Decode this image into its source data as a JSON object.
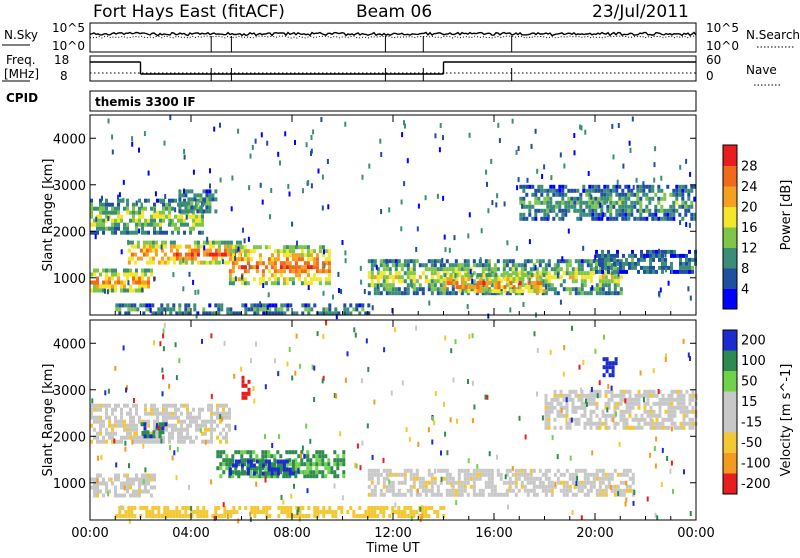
{
  "header": {
    "title": "Fort Hays East (fitACF)",
    "beam": "Beam 06",
    "date": "23/Jul/2011"
  },
  "top_panels": {
    "nsky_label": "N.Sky",
    "nsearch_label": "N.Search",
    "nsky_ticks": [
      "10^5",
      "10^0"
    ],
    "nsearch_ticks": [
      "10^5",
      "10^0"
    ],
    "freq_label_1": "Freq.",
    "freq_label_2": "[MHz]",
    "freq_ticks": [
      "18",
      "8"
    ],
    "nave_label": "Nave",
    "nave_ticks": [
      "60",
      "0"
    ],
    "cpid_label": "CPID",
    "cpid_value": "themis 3300 IF"
  },
  "chart_data": [
    {
      "type": "heatmap",
      "title": "",
      "xlabel": "Time UT",
      "ylabel": "Slant Range [km]",
      "x_ticks": [
        "00:00",
        "04:00",
        "08:00",
        "12:00",
        "16:00",
        "20:00",
        "00:00"
      ],
      "xlim_hours": [
        0,
        24
      ],
      "y_ticks": [
        1000,
        2000,
        3000,
        4000
      ],
      "ylim": [
        200,
        4500
      ],
      "colorbar": {
        "label": "Power [dB]",
        "ticks": [
          4,
          8,
          12,
          16,
          20,
          24,
          28
        ],
        "range": [
          0,
          30
        ],
        "colors": [
          "#0000ff",
          "#1e4fa0",
          "#3b8d78",
          "#7ec54a",
          "#f4e62a",
          "#f5a020",
          "#f06a1a",
          "#e81e1e"
        ]
      },
      "echo_regions": [
        {
          "t_start": 0.0,
          "t_end": 2.5,
          "range_low": 700,
          "range_high": 1200,
          "power": 20
        },
        {
          "t_start": 0.0,
          "t_end": 4.5,
          "range_low": 2000,
          "range_high": 2700,
          "power": 13
        },
        {
          "t_start": 1.5,
          "t_end": 6.0,
          "range_low": 1300,
          "range_high": 1800,
          "power": 22
        },
        {
          "t_start": 3.5,
          "t_end": 5.0,
          "range_low": 2400,
          "range_high": 2900,
          "power": 10
        },
        {
          "t_start": 5.5,
          "t_end": 9.5,
          "range_low": 900,
          "range_high": 1700,
          "power": 22
        },
        {
          "t_start": 1.0,
          "t_end": 11.0,
          "range_low": 250,
          "range_high": 450,
          "power": 10
        },
        {
          "t_start": 11.0,
          "t_end": 21.0,
          "range_low": 700,
          "range_high": 1400,
          "power": 14
        },
        {
          "t_start": 14.0,
          "t_end": 18.0,
          "range_low": 700,
          "range_high": 1100,
          "power": 22
        },
        {
          "t_start": 17.0,
          "t_end": 24.0,
          "range_low": 2300,
          "range_high": 3000,
          "power": 10
        },
        {
          "t_start": 20.0,
          "t_end": 24.0,
          "range_low": 1100,
          "range_high": 1600,
          "power": 8
        }
      ]
    },
    {
      "type": "heatmap",
      "title": "",
      "xlabel": "Time UT",
      "ylabel": "Slant Range [km]",
      "x_ticks": [
        "00:00",
        "04:00",
        "08:00",
        "12:00",
        "16:00",
        "20:00",
        "00:00"
      ],
      "xlim_hours": [
        0,
        24
      ],
      "y_ticks": [
        1000,
        2000,
        3000,
        4000
      ],
      "ylim": [
        200,
        4500
      ],
      "colorbar": {
        "label": "Velocity [m s^-1]",
        "ticks": [
          200,
          100,
          50,
          15,
          -15,
          -50,
          -100,
          -200
        ],
        "colors": [
          "#1a2bd0",
          "#2f8a4f",
          "#6fd24a",
          "#c8c8c8",
          "#c8c8c8",
          "#f4c832",
          "#f59a1e",
          "#e81e1e"
        ]
      },
      "echo_regions": [
        {
          "t_start": 0.0,
          "t_end": 2.5,
          "range_low": 700,
          "range_high": 1200,
          "velocity": 0
        },
        {
          "t_start": 0.0,
          "t_end": 5.5,
          "range_low": 1900,
          "range_high": 2700,
          "velocity": 0
        },
        {
          "t_start": 2.0,
          "t_end": 3.0,
          "range_low": 2000,
          "range_high": 2300,
          "velocity": 150
        },
        {
          "t_start": 5.0,
          "t_end": 10.0,
          "range_low": 1100,
          "range_high": 1700,
          "velocity": 80
        },
        {
          "t_start": 5.5,
          "t_end": 8.0,
          "range_low": 1200,
          "range_high": 1500,
          "velocity": 150
        },
        {
          "t_start": 1.0,
          "t_end": 14.0,
          "range_low": 250,
          "range_high": 500,
          "velocity": -50
        },
        {
          "t_start": 11.0,
          "t_end": 21.5,
          "range_low": 700,
          "range_high": 1300,
          "velocity": 0
        },
        {
          "t_start": 18.0,
          "t_end": 24.0,
          "range_low": 2200,
          "range_high": 3000,
          "velocity": 0
        },
        {
          "t_start": 20.3,
          "t_end": 20.8,
          "range_low": 3300,
          "range_high": 3700,
          "velocity": 200
        },
        {
          "t_start": 6.0,
          "t_end": 6.3,
          "range_low": 2800,
          "range_high": 3300,
          "velocity": -200
        }
      ]
    }
  ]
}
